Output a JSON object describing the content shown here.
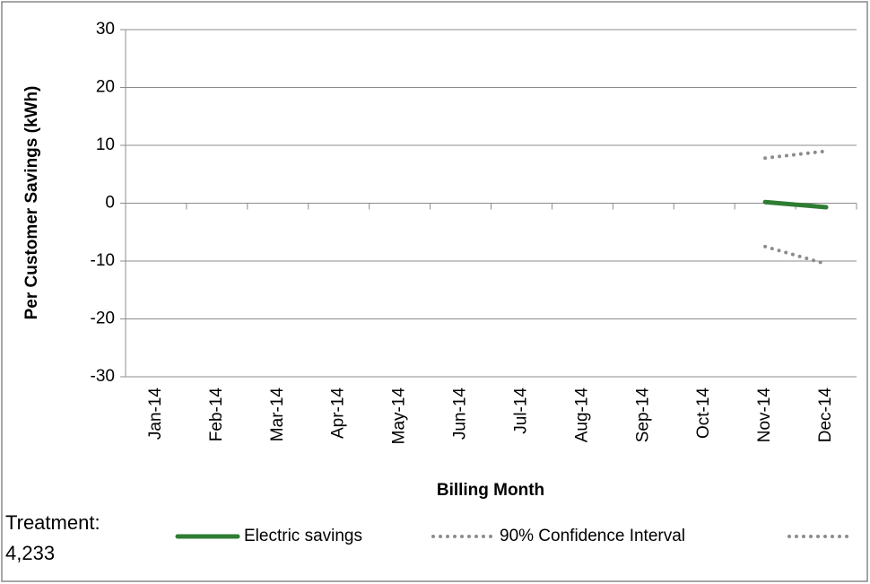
{
  "chart_data": {
    "type": "line",
    "y_axis_label": "Per Customer Savings (kWh)",
    "x_axis_label": "Billing Month",
    "annotation_lines": [
      "Treatment:",
      "4,233"
    ],
    "categories": [
      "Jan-14",
      "Feb-14",
      "Mar-14",
      "Apr-14",
      "May-14",
      "Jun-14",
      "Jul-14",
      "Aug-14",
      "Sep-14",
      "Oct-14",
      "Nov-14",
      "Dec-14"
    ],
    "series": [
      {
        "name": "Electric savings",
        "color": "#2e7d32",
        "style": "solid",
        "values": [
          null,
          null,
          null,
          null,
          null,
          null,
          null,
          null,
          null,
          null,
          0.2,
          -0.7
        ]
      },
      {
        "name": "90% Confidence Interval",
        "color": "#8c8c8c",
        "style": "dotted",
        "values": [
          null,
          null,
          null,
          null,
          null,
          null,
          null,
          null,
          null,
          null,
          7.8,
          9
        ]
      },
      {
        "color": "#8c8c8c",
        "style": "dotted",
        "values": [
          null,
          null,
          null,
          null,
          null,
          null,
          null,
          null,
          null,
          null,
          -7.5,
          -10.5
        ]
      }
    ],
    "ylim": [
      -30,
      30
    ],
    "yticks": [
      -30,
      -20,
      -10,
      0,
      10,
      20,
      30
    ],
    "grid": true,
    "legend": "bottom"
  }
}
